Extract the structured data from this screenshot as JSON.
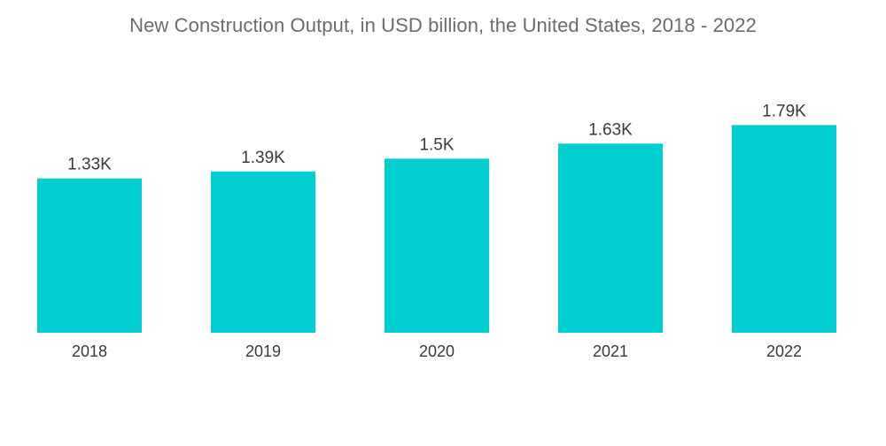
{
  "chart_data": {
    "type": "bar",
    "title": "New Construction Output, in USD billion, the United States, 2018 - 2022",
    "categories": [
      "2018",
      "2019",
      "2020",
      "2021",
      "2022"
    ],
    "values": [
      1330,
      1390,
      1500,
      1630,
      1790
    ],
    "data_labels": [
      "1.33K",
      "1.39K",
      "1.5K",
      "1.63K",
      "1.79K"
    ],
    "xlabel": "",
    "ylabel": "",
    "ylim": [
      0,
      1800
    ],
    "grid": false,
    "legend": "none",
    "bar_color": "#00CED1"
  }
}
